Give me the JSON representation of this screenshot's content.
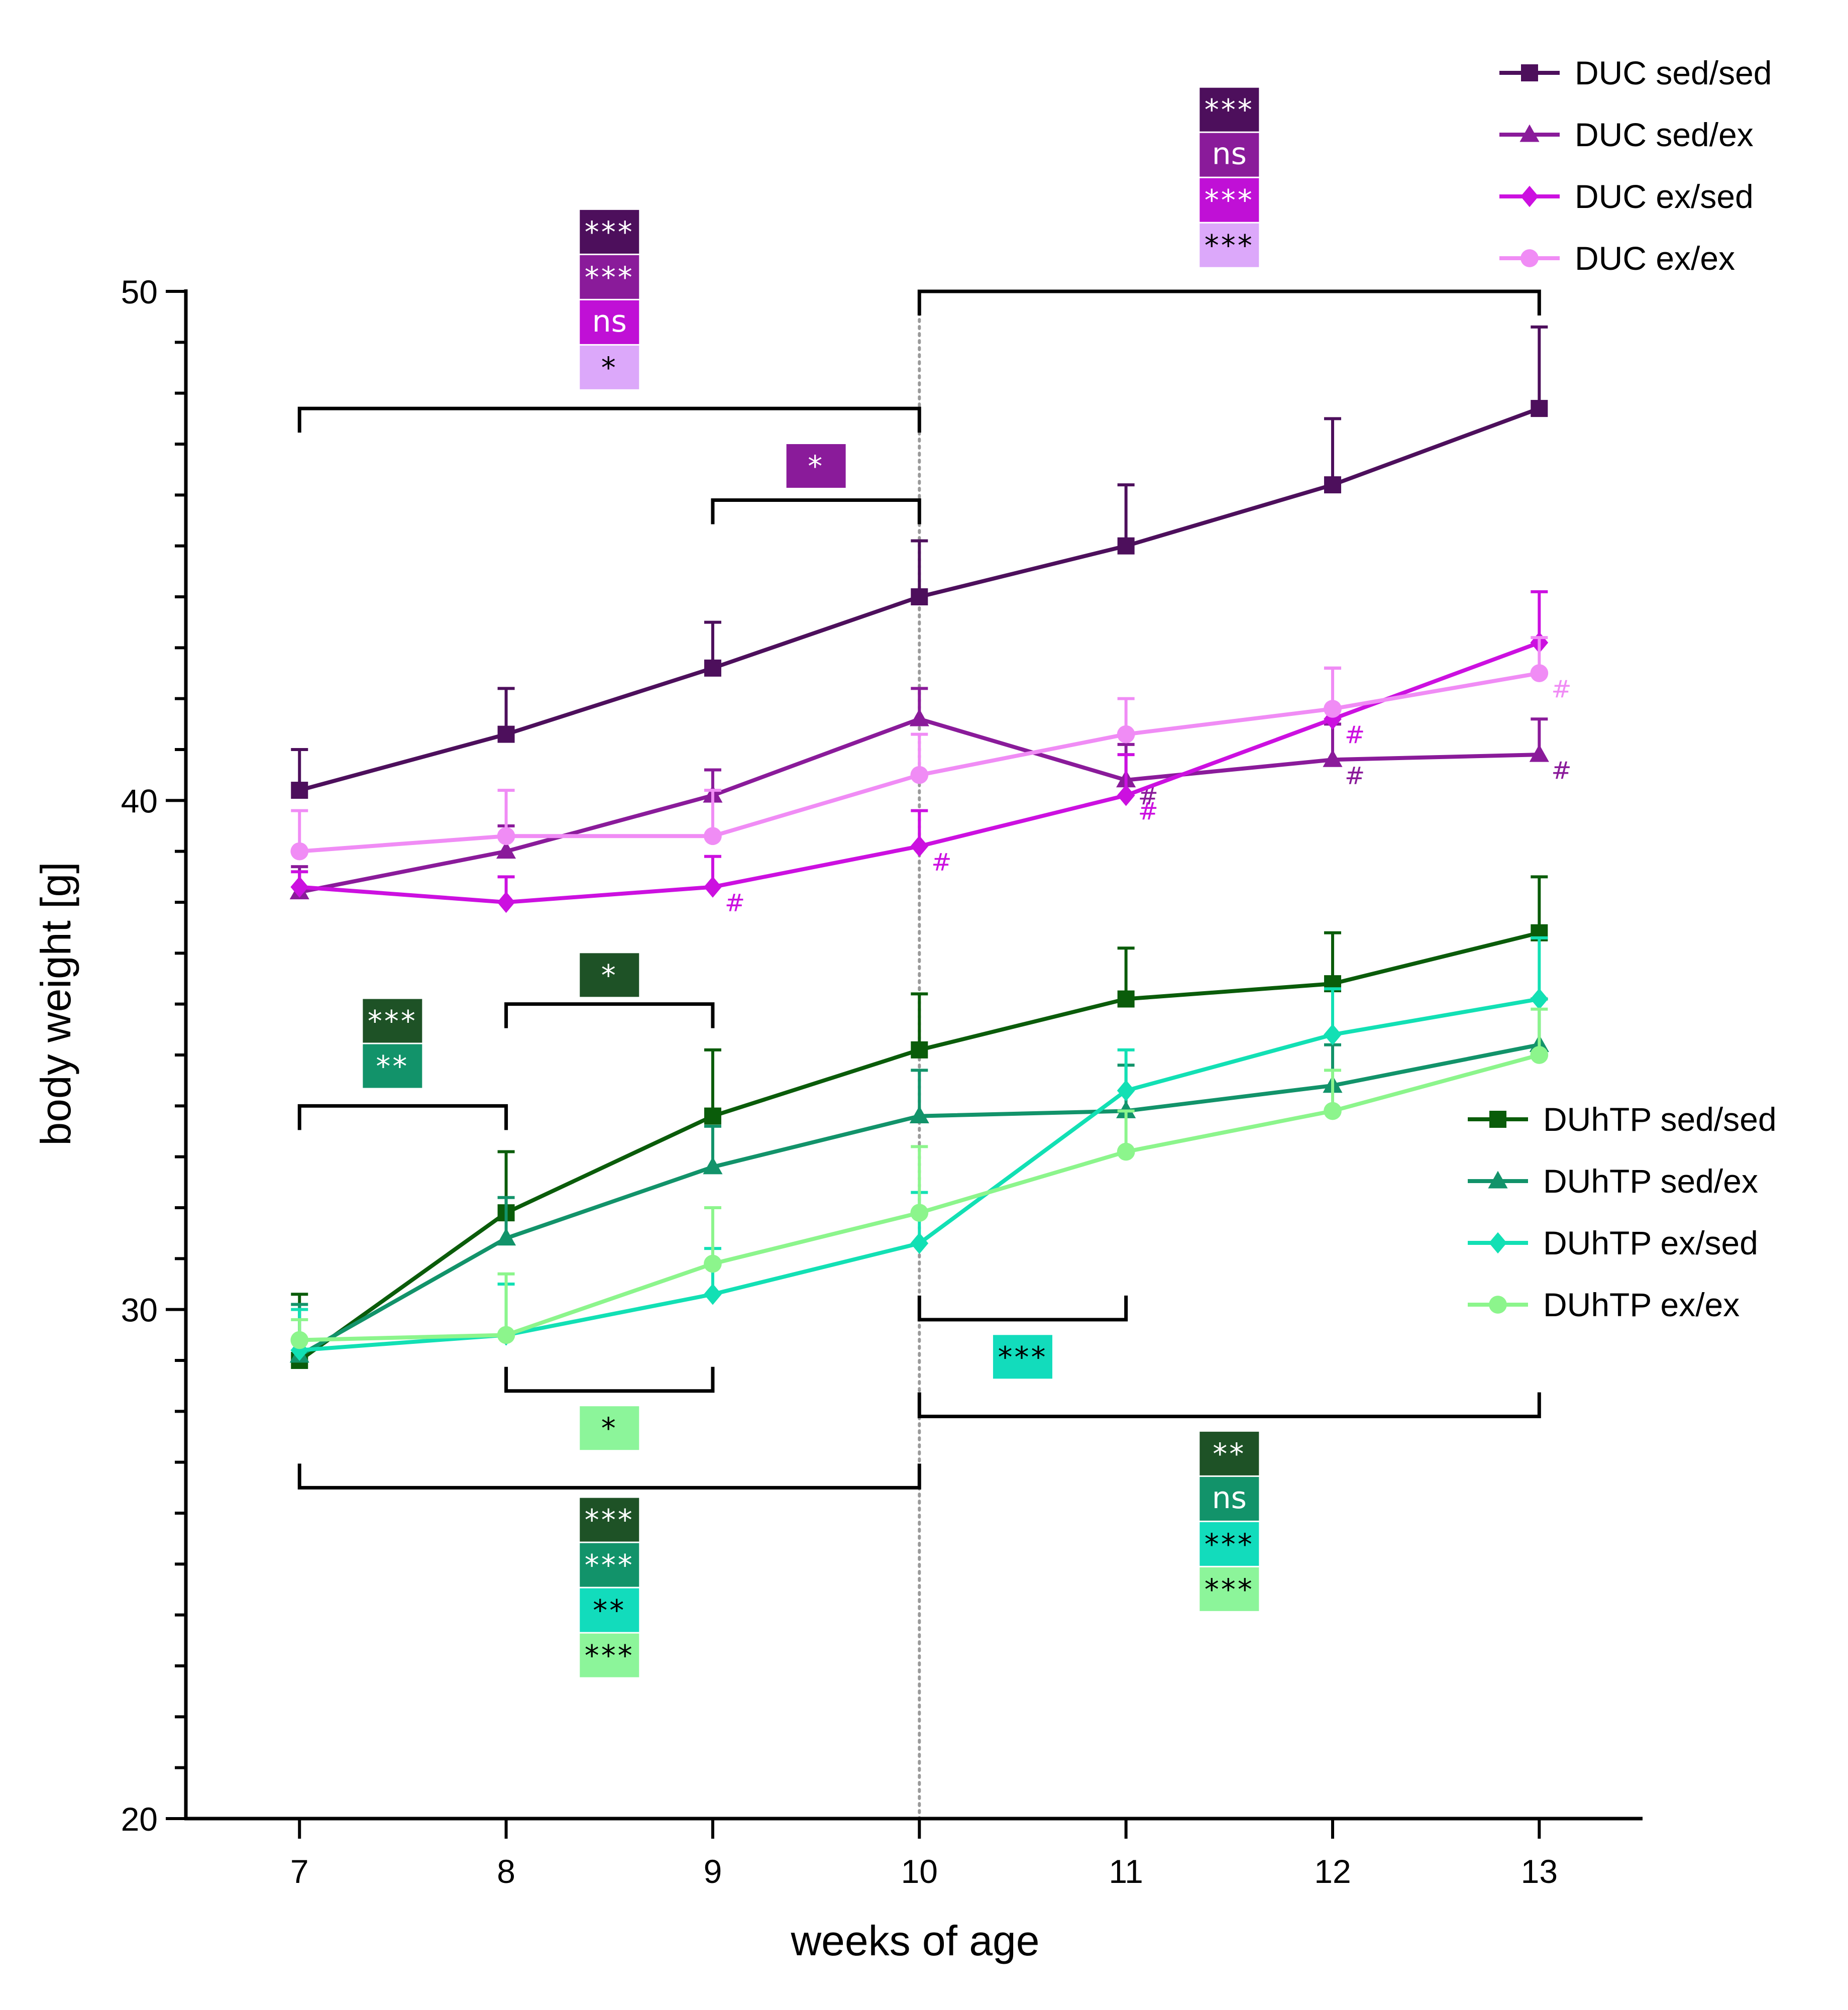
{
  "chart_data": {
    "type": "line",
    "xlabel": "weeks of age",
    "ylabel": "body weight [g]",
    "x": [
      7,
      8,
      9,
      10,
      11,
      12,
      13
    ],
    "xlim": [
      6.45,
      13.5
    ],
    "ylim": [
      20,
      50
    ],
    "yticks": [
      20,
      30,
      40,
      50
    ],
    "xticks": [
      7,
      8,
      9,
      10,
      11,
      12,
      13
    ],
    "vertical_reference_line_x": 10,
    "series": [
      {
        "name": "DUC sed/sed",
        "color": "#4d0f5c",
        "marker": "square",
        "values": [
          40.2,
          41.3,
          42.6,
          44.0,
          45.0,
          46.2,
          47.7
        ],
        "errors": [
          0.8,
          0.9,
          0.9,
          1.1,
          1.2,
          1.3,
          1.6
        ],
        "hash": [
          false,
          false,
          false,
          false,
          false,
          false,
          false
        ]
      },
      {
        "name": "DUC sed/ex",
        "color": "#8a1b9a",
        "marker": "triangle",
        "values": [
          38.2,
          39.0,
          40.1,
          41.6,
          40.4,
          40.8,
          40.9
        ],
        "errors": [
          0.5,
          0.5,
          0.5,
          0.6,
          0.7,
          0.7,
          0.7
        ],
        "hash": [
          false,
          false,
          false,
          false,
          true,
          true,
          true
        ]
      },
      {
        "name": "DUC ex/sed",
        "color": "#cc10e0",
        "marker": "diamond",
        "values": [
          38.3,
          38.0,
          38.3,
          39.1,
          40.1,
          41.6,
          43.1
        ],
        "errors": [
          0.3,
          0.5,
          0.6,
          0.7,
          0.8,
          1.0,
          1.0
        ],
        "hash": [
          false,
          false,
          true,
          true,
          true,
          true,
          false
        ]
      },
      {
        "name": "DUC ex/ex",
        "color": "#f08cf5",
        "marker": "circle",
        "values": [
          39.0,
          39.3,
          39.3,
          40.5,
          41.3,
          41.8,
          42.5
        ],
        "errors": [
          0.8,
          0.9,
          0.9,
          0.8,
          0.7,
          0.8,
          0.7
        ],
        "hash": [
          false,
          false,
          false,
          false,
          false,
          false,
          true
        ]
      },
      {
        "name": "DUhTP sed/sed",
        "color": "#0a5c0a",
        "marker": "square",
        "values": [
          29.0,
          31.9,
          33.8,
          35.1,
          36.1,
          36.4,
          37.4
        ],
        "errors": [
          1.3,
          1.2,
          1.3,
          1.1,
          1.0,
          1.0,
          1.1
        ],
        "hash": [
          false,
          false,
          false,
          false,
          false,
          false,
          false
        ]
      },
      {
        "name": "DUhTP sed/ex",
        "color": "#12936a",
        "marker": "triangle",
        "values": [
          29.1,
          31.4,
          32.8,
          33.8,
          33.9,
          34.4,
          35.2
        ],
        "errors": [
          1.0,
          0.8,
          0.8,
          0.9,
          0.9,
          0.8,
          0.9
        ],
        "hash": [
          false,
          false,
          false,
          false,
          false,
          false,
          false
        ]
      },
      {
        "name": "DUhTP ex/sed",
        "color": "#12e0b4",
        "marker": "diamond",
        "values": [
          29.2,
          29.5,
          30.3,
          31.3,
          34.3,
          35.4,
          36.1
        ],
        "errors": [
          0.8,
          1.0,
          0.9,
          1.0,
          0.8,
          0.9,
          1.2
        ],
        "hash": [
          false,
          false,
          false,
          false,
          false,
          false,
          false
        ]
      },
      {
        "name": "DUhTP ex/ex",
        "color": "#8cf58c",
        "marker": "circle",
        "values": [
          29.4,
          29.5,
          30.9,
          31.9,
          33.1,
          33.9,
          35.0
        ],
        "errors": [
          0.4,
          1.2,
          1.1,
          1.3,
          0.8,
          0.8,
          0.9
        ],
        "hash": [
          false,
          false,
          false,
          false,
          false,
          false,
          false
        ]
      }
    ],
    "hash_symbol": "#",
    "legend_top": [
      "DUC sed/sed",
      "DUC sed/ex",
      "DUC ex/sed",
      "DUC ex/ex"
    ],
    "legend_bottom": [
      "DUhTP sed/sed",
      "DUhTP sed/ex",
      "DUhTP ex/sed",
      "DUhTP ex/ex"
    ],
    "comparisons": [
      {
        "id": "duc-7-10",
        "from_week": 7,
        "to_week": 10,
        "level": 47.7,
        "orientation": "down",
        "labels": [
          "***",
          "***",
          "ns",
          "*"
        ],
        "colors": [
          "#4d0f5c",
          "#8a1b9a",
          "#c010d6",
          "#dca8fa"
        ],
        "text_colors": [
          "#ffffff",
          "#ffffff",
          "#ffffff",
          "#000000"
        ],
        "label_center_week": 8.5,
        "label_top_value": 51.6
      },
      {
        "id": "duc-10-13",
        "from_week": 10,
        "to_week": 13,
        "level": 50.0,
        "orientation": "down",
        "labels": [
          "***",
          "ns",
          "***",
          "***"
        ],
        "colors": [
          "#4d0f5c",
          "#8a1b9a",
          "#c010d6",
          "#dca8fa"
        ],
        "text_colors": [
          "#ffffff",
          "#ffffff",
          "#ffffff",
          "#000000"
        ],
        "label_center_week": 11.5,
        "label_top_value": 54.0
      },
      {
        "id": "duc-9-10",
        "from_week": 9,
        "to_week": 10,
        "level": 45.9,
        "orientation": "down",
        "labels": [
          "*"
        ],
        "colors": [
          "#8a1b9a"
        ],
        "text_colors": [
          "#ffffff"
        ],
        "label_center_week": 9.5,
        "label_top_value": 47.0
      },
      {
        "id": "duhtp-8-9-top",
        "from_week": 8,
        "to_week": 9,
        "level": 36.0,
        "orientation": "down",
        "labels": [
          "*"
        ],
        "colors": [
          "#1e5226"
        ],
        "text_colors": [
          "#ffffff"
        ],
        "label_center_week": 8.5,
        "label_top_value": 37.0
      },
      {
        "id": "duhtp-7-8",
        "from_week": 7,
        "to_week": 8,
        "level": 34.0,
        "orientation": "down",
        "labels": [
          "***",
          "**"
        ],
        "colors": [
          "#1e5226",
          "#12936a"
        ],
        "text_colors": [
          "#ffffff",
          "#ffffff"
        ],
        "label_center_week": 7.45,
        "label_top_value": 36.1
      },
      {
        "id": "duhtp-8-9-bottom",
        "from_week": 8,
        "to_week": 9,
        "level": 28.4,
        "orientation": "up",
        "labels": [
          "*"
        ],
        "colors": [
          "#8cf59a"
        ],
        "text_colors": [
          "#000000"
        ],
        "label_center_week": 8.5,
        "label_top_value": 28.1
      },
      {
        "id": "duhtp-7-10",
        "from_week": 7,
        "to_week": 10,
        "level": 26.5,
        "orientation": "up",
        "labels": [
          "***",
          "***",
          "**",
          "***"
        ],
        "colors": [
          "#1e5226",
          "#12936a",
          "#12dcbc",
          "#8cf59a"
        ],
        "text_colors": [
          "#ffffff",
          "#ffffff",
          "#000000",
          "#000000"
        ],
        "label_center_week": 8.5,
        "label_top_value": 26.3
      },
      {
        "id": "duhtp-10-11",
        "from_week": 10,
        "to_week": 11,
        "level": 29.8,
        "orientation": "up",
        "labels": [
          "***"
        ],
        "colors": [
          "#12dcbc"
        ],
        "text_colors": [
          "#000000"
        ],
        "label_center_week": 10.5,
        "label_top_value": 29.5
      },
      {
        "id": "duhtp-10-13",
        "from_week": 10,
        "to_week": 13,
        "level": 27.9,
        "orientation": "up",
        "labels": [
          "**",
          "ns",
          "***",
          "***"
        ],
        "colors": [
          "#1e5226",
          "#12936a",
          "#12dcbc",
          "#8cf59a"
        ],
        "text_colors": [
          "#ffffff",
          "#ffffff",
          "#000000",
          "#000000"
        ],
        "label_center_week": 11.5,
        "label_top_value": 27.6
      }
    ]
  }
}
